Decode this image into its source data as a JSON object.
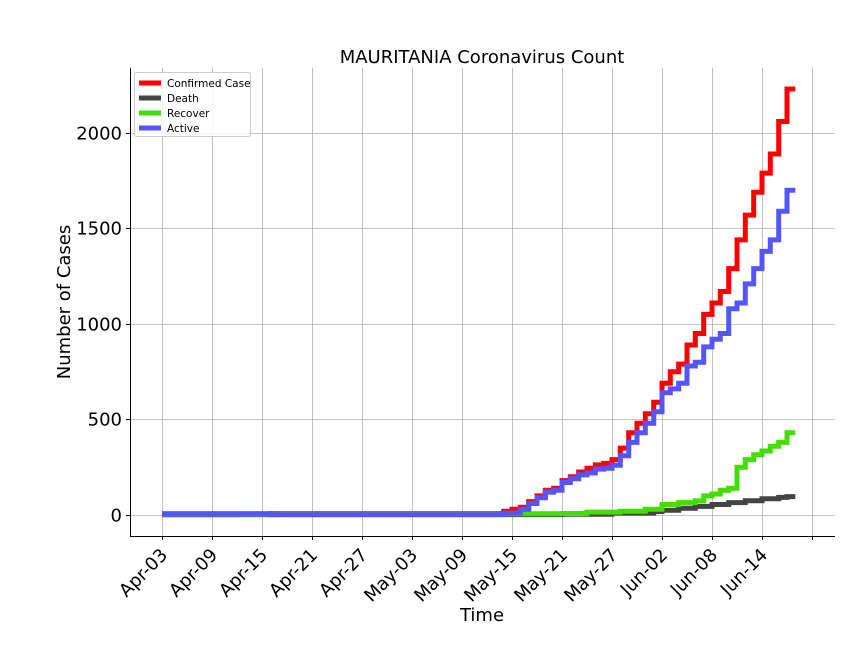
{
  "chart_data": {
    "type": "line",
    "step": true,
    "title": "MAURITANIA Coronavirus Count",
    "xlabel": "Time",
    "ylabel": "Number of Cases",
    "x_tick_labels": [
      "Apr-03",
      "Apr-09",
      "Apr-15",
      "Apr-21",
      "Apr-27",
      "May-03",
      "May-09",
      "May-15",
      "May-21",
      "May-27",
      "Jun-02",
      "Jun-08",
      "Jun-14"
    ],
    "y_ticks": [
      0,
      500,
      1000,
      1500,
      2000
    ],
    "y_tick_labels": [
      "0",
      "500",
      "1000",
      "1500",
      "2000"
    ],
    "ylim": [
      -110,
      2340
    ],
    "x_start": "2020-04-03",
    "x_end": "2020-06-18",
    "grid": true,
    "legend_position": "top-left",
    "series": [
      {
        "name": "Confirmed Case",
        "color": "#ff0000",
        "x": [
          "2020-04-03",
          "2020-04-12",
          "2020-04-16",
          "2020-05-14",
          "2020-05-15",
          "2020-05-16",
          "2020-05-17",
          "2020-05-18",
          "2020-05-19",
          "2020-05-20",
          "2020-05-21",
          "2020-05-22",
          "2020-05-23",
          "2020-05-24",
          "2020-05-25",
          "2020-05-26",
          "2020-05-27",
          "2020-05-28",
          "2020-05-29",
          "2020-05-30",
          "2020-05-31",
          "2020-06-01",
          "2020-06-02",
          "2020-06-03",
          "2020-06-04",
          "2020-06-05",
          "2020-06-06",
          "2020-06-07",
          "2020-06-08",
          "2020-06-09",
          "2020-06-10",
          "2020-06-11",
          "2020-06-12",
          "2020-06-13",
          "2020-06-14",
          "2020-06-15",
          "2020-06-16",
          "2020-06-17",
          "2020-06-18"
        ],
        "y": [
          6,
          7,
          8,
          20,
          30,
          40,
          70,
          100,
          130,
          140,
          180,
          200,
          225,
          245,
          262,
          270,
          290,
          350,
          430,
          480,
          530,
          590,
          690,
          750,
          790,
          890,
          950,
          1050,
          1110,
          1170,
          1290,
          1440,
          1570,
          1690,
          1790,
          1890,
          2060,
          2230,
          2230
        ]
      },
      {
        "name": "Death",
        "color": "#444444",
        "x": [
          "2020-04-03",
          "2020-04-12",
          "2020-05-15",
          "2020-05-21",
          "2020-05-27",
          "2020-06-01",
          "2020-06-02",
          "2020-06-04",
          "2020-06-06",
          "2020-06-08",
          "2020-06-10",
          "2020-06-12",
          "2020-06-14",
          "2020-06-16",
          "2020-06-17",
          "2020-06-18"
        ],
        "y": [
          1,
          2,
          2,
          4,
          10,
          18,
          25,
          35,
          45,
          55,
          65,
          75,
          85,
          92,
          96,
          96
        ]
      },
      {
        "name": "Recover",
        "color": "#44dd00",
        "x": [
          "2020-04-03",
          "2020-04-12",
          "2020-04-16",
          "2020-05-14",
          "2020-05-21",
          "2020-05-24",
          "2020-05-28",
          "2020-05-31",
          "2020-06-02",
          "2020-06-04",
          "2020-06-06",
          "2020-06-07",
          "2020-06-08",
          "2020-06-09",
          "2020-06-10",
          "2020-06-11",
          "2020-06-12",
          "2020-06-13",
          "2020-06-14",
          "2020-06-15",
          "2020-06-16",
          "2020-06-17",
          "2020-06-18"
        ],
        "y": [
          2,
          2,
          5,
          6,
          8,
          15,
          20,
          30,
          55,
          65,
          75,
          100,
          110,
          130,
          140,
          250,
          290,
          315,
          335,
          360,
          380,
          430,
          430
        ]
      },
      {
        "name": "Active",
        "color": "#5555ff",
        "x": [
          "2020-04-03",
          "2020-04-12",
          "2020-04-16",
          "2020-05-14",
          "2020-05-16",
          "2020-05-17",
          "2020-05-18",
          "2020-05-19",
          "2020-05-20",
          "2020-05-21",
          "2020-05-22",
          "2020-05-23",
          "2020-05-24",
          "2020-05-25",
          "2020-05-26",
          "2020-05-27",
          "2020-05-28",
          "2020-05-29",
          "2020-05-30",
          "2020-05-31",
          "2020-06-01",
          "2020-06-02",
          "2020-06-03",
          "2020-06-04",
          "2020-06-05",
          "2020-06-06",
          "2020-06-07",
          "2020-06-08",
          "2020-06-09",
          "2020-06-10",
          "2020-06-11",
          "2020-06-12",
          "2020-06-13",
          "2020-06-14",
          "2020-06-15",
          "2020-06-16",
          "2020-06-17",
          "2020-06-18"
        ],
        "y": [
          3,
          4,
          2,
          10,
          30,
          60,
          90,
          120,
          130,
          170,
          190,
          210,
          220,
          240,
          245,
          260,
          310,
          380,
          430,
          480,
          540,
          640,
          660,
          690,
          780,
          800,
          880,
          920,
          950,
          1080,
          1110,
          1210,
          1290,
          1380,
          1440,
          1590,
          1700,
          1700
        ]
      }
    ]
  }
}
